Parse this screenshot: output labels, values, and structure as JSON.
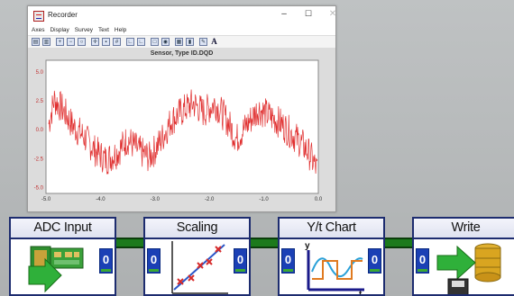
{
  "window": {
    "title": "Recorder",
    "controls": {
      "minimize": "–",
      "maximize": "☐",
      "close": "✕"
    },
    "menu": [
      "Axes",
      "Display",
      "Survey",
      "Text",
      "Help"
    ],
    "toolbar_icons": [
      "layout-icon",
      "layout2-icon",
      "zoom-in-icon",
      "zoom-out-icon",
      "zoom-icon",
      "cursor-icon",
      "save-icon",
      "grid-icon",
      "axis-icon",
      "axis2-icon",
      "copy-icon",
      "camera-icon",
      "table-icon",
      "bar-icon",
      "pen-icon",
      "text-icon"
    ],
    "toolbar_text_glyph": "A"
  },
  "chart_data": {
    "type": "line",
    "title": "Sensor, Type ID.DQD",
    "xlabel": "",
    "ylabel": "",
    "xlim": [
      -5.0,
      0.0
    ],
    "ylim": [
      -5.5,
      6.0
    ],
    "x_ticks": [
      "-5.0",
      "-4.0",
      "-3.0",
      "-2.0",
      "-1.0",
      "0.0"
    ],
    "y_ticks": [
      "5.0",
      "2.5",
      "0.0",
      "-2.5",
      "-5.0"
    ],
    "grid": false,
    "series": [
      {
        "color": "#e03030",
        "trend": [
          [
            -4.95,
            0.5
          ],
          [
            -4.85,
            2.6
          ],
          [
            -4.7,
            1.8
          ],
          [
            -4.5,
            0.3
          ],
          [
            -4.3,
            -0.6
          ],
          [
            -4.1,
            -1.8
          ],
          [
            -3.9,
            -2.6
          ],
          [
            -3.7,
            -2.0
          ],
          [
            -3.5,
            -0.8
          ],
          [
            -3.3,
            -1.8
          ],
          [
            -3.1,
            -2.4
          ],
          [
            -2.9,
            -1.0
          ],
          [
            -2.7,
            0.8
          ],
          [
            -2.5,
            1.6
          ],
          [
            -2.3,
            2.3
          ],
          [
            -2.1,
            1.5
          ],
          [
            -1.9,
            2.3
          ],
          [
            -1.7,
            1.0
          ],
          [
            -1.5,
            -0.8
          ],
          [
            -1.3,
            0.5
          ],
          [
            -1.1,
            1.8
          ],
          [
            -0.9,
            1.2
          ],
          [
            -0.7,
            0.6
          ],
          [
            -0.5,
            -0.3
          ],
          [
            -0.3,
            -1.2
          ],
          [
            -0.15,
            -2.2
          ],
          [
            -0.02,
            -3.5
          ]
        ],
        "noise_amplitude": 1.4
      }
    ]
  },
  "pipeline": [
    {
      "label": "ADC Input",
      "icon": "adc-card-arrow-icon",
      "ports": {
        "in": null,
        "out": "0"
      }
    },
    {
      "label": "Scaling",
      "icon": "scaling-plot-icon",
      "ports": {
        "in": "0",
        "out": "0"
      }
    },
    {
      "label": "Y/t Chart",
      "icon": "yt-chart-icon",
      "ports": {
        "in": "0",
        "out": "0"
      }
    },
    {
      "label": "Write",
      "icon": "write-database-icon",
      "ports": {
        "in": "0",
        "out": null
      }
    }
  ]
}
